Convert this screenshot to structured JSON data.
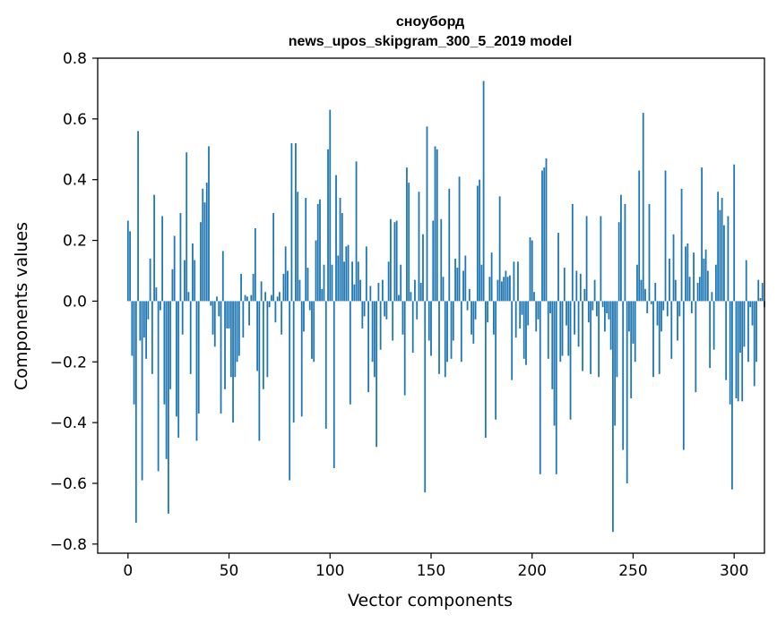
{
  "chart_data": {
    "type": "bar",
    "title": "сноуборд",
    "subtitle": "news_upos_skipgram_300_5_2019 model",
    "xlabel": "Vector components",
    "ylabel": "Components values",
    "xlim": [
      -15,
      315
    ],
    "ylim": [
      -0.83,
      0.8
    ],
    "x_ticks": [
      0,
      50,
      100,
      150,
      200,
      250,
      300
    ],
    "x_tick_labels": [
      "0",
      "50",
      "100",
      "150",
      "200",
      "250",
      "300"
    ],
    "y_ticks": [
      0.8,
      0.6,
      0.4,
      0.2,
      0.0,
      -0.2,
      -0.4,
      -0.6,
      -0.8
    ],
    "y_tick_labels": [
      "0.8",
      "0.6",
      "0.4",
      "0.2",
      "0.0",
      "−0.2",
      "−0.4",
      "−0.6",
      "−0.8"
    ],
    "grid": false,
    "legend": "none",
    "bar_color": "#1f77b4",
    "values": [
      0.265,
      0.23,
      -0.18,
      -0.34,
      -0.73,
      0.56,
      -0.13,
      -0.59,
      -0.12,
      -0.19,
      -0.06,
      0.14,
      -0.24,
      0.35,
      0.045,
      -0.56,
      -0.03,
      0.28,
      -0.34,
      -0.52,
      -0.7,
      -0.29,
      0.105,
      0.215,
      -0.38,
      -0.45,
      0.29,
      -0.11,
      0.135,
      0.49,
      0.03,
      -0.24,
      0.19,
      0.135,
      -0.46,
      -0.37,
      0.26,
      0.37,
      0.325,
      0.39,
      0.51,
      -0.015,
      -0.11,
      -0.15,
      0.015,
      -0.05,
      -0.37,
      0.165,
      -0.29,
      -0.09,
      -0.09,
      -0.25,
      -0.4,
      -0.25,
      -0.2,
      -0.18,
      0.09,
      -0.12,
      0.02,
      0.015,
      -0.08,
      0.02,
      0.09,
      0.24,
      -0.23,
      -0.46,
      0.065,
      -0.29,
      0.03,
      -0.25,
      -0.02,
      0.02,
      0.29,
      -0.07,
      0.015,
      0.03,
      -0.11,
      0.09,
      0.18,
      0.1,
      -0.59,
      0.52,
      -0.4,
      0.52,
      0.36,
      0.07,
      -0.38,
      -0.1,
      0.34,
      0.11,
      -0.03,
      -0.19,
      -0.2,
      0.2,
      0.32,
      0.335,
      0.04,
      0.12,
      -0.42,
      0.5,
      0.63,
      0.12,
      -0.55,
      0.415,
      0.15,
      0.34,
      0.29,
      0.13,
      0.18,
      0.185,
      -0.34,
      0.13,
      0.055,
      0.46,
      0.13,
      0.07,
      -0.09,
      -0.05,
      0.18,
      -0.3,
      0.05,
      -0.2,
      -0.25,
      -0.48,
      0.06,
      -0.16,
      0.07,
      -0.05,
      -0.06,
      0.13,
      0.27,
      -0.13,
      0.26,
      0.265,
      0.02,
      0.12,
      -0.11,
      -0.31,
      0.44,
      0.39,
      0.03,
      -0.17,
      0.07,
      -0.06,
      0.36,
      0.06,
      0.22,
      -0.63,
      0.575,
      -0.13,
      -0.18,
      0.265,
      0.51,
      0.5,
      -0.24,
      0.27,
      0.08,
      -0.25,
      -0.2,
      0.37,
      -0.19,
      -0.13,
      0.14,
      0.11,
      0.41,
      -0.2,
      0.1,
      0.15,
      -0.03,
      0.04,
      -0.11,
      -0.14,
      -0.06,
      0.38,
      0.4,
      0.12,
      0.725,
      -0.45,
      -0.07,
      0.08,
      0.16,
      -0.11,
      -0.39,
      0.07,
      0.345,
      0.065,
      0.08,
      0.1,
      0.08,
      0.085,
      -0.26,
      0.13,
      -0.12,
      0.13,
      -0.09,
      -0.045,
      -0.19,
      -0.21,
      -0.08,
      0.21,
      0.2,
      0.03,
      -0.1,
      -0.06,
      -0.57,
      0.43,
      0.44,
      0.47,
      -0.19,
      -0.04,
      -0.29,
      -0.41,
      -0.57,
      0.225,
      -0.2,
      -0.18,
      0.11,
      -0.08,
      -0.18,
      -0.39,
      0.32,
      -0.11,
      0.1,
      -0.15,
      0.09,
      -0.23,
      0.04,
      0.28,
      -0.07,
      -0.24,
      -0.03,
      0.07,
      -0.05,
      -0.25,
      0.28,
      -0.02,
      -0.1,
      -0.04,
      -0.06,
      -0.16,
      -0.76,
      -0.41,
      -0.25,
      0.26,
      0.35,
      -0.49,
      0.32,
      -0.6,
      -0.1,
      -0.32,
      -0.14,
      -0.2,
      0.12,
      0.43,
      0.07,
      0.62,
      0.04,
      -0.04,
      0.32,
      -0.01,
      -0.25,
      0.06,
      -0.08,
      -0.24,
      -0.1,
      -0.03,
      0.43,
      -0.05,
      0.14,
      -0.19,
      0.22,
      0.07,
      -0.13,
      -0.05,
      0.37,
      -0.49,
      0.18,
      0.19,
      0.08,
      -0.04,
      0.16,
      -0.3,
      0.06,
      0.08,
      0.44,
      0.14,
      0.17,
      0.1,
      -0.22,
      0.03,
      -0.16,
      0.12,
      0.36,
      0.3,
      0.34,
      0.25,
      -0.26,
      0.28,
      -0.34,
      -0.62,
      0.45,
      -0.32,
      -0.33,
      -0.17,
      -0.33,
      -0.15,
      0.135,
      -0.2,
      -0.02,
      -0.08,
      -0.28,
      -0.2,
      0.07,
      0.01,
      0.06,
      -0.02
    ]
  }
}
